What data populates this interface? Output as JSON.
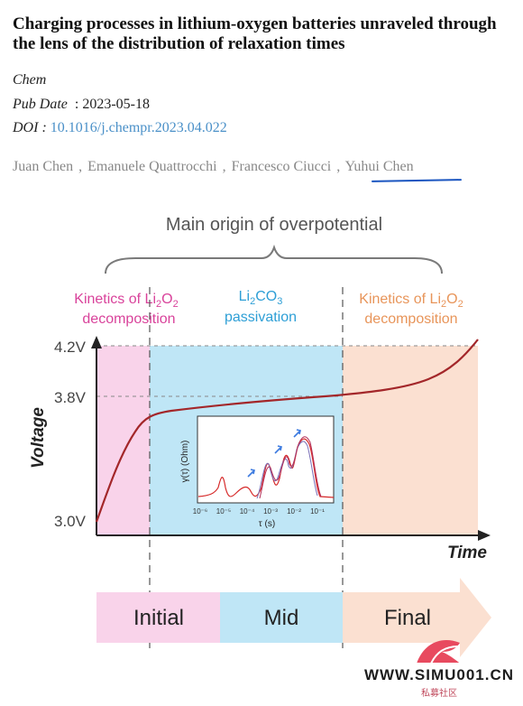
{
  "article": {
    "title": "Charging processes in lithium-oxygen batteries unraveled through the lens of the distribution of relaxation times",
    "journal": "Chem",
    "pub_date_label": "Pub Date",
    "pub_date_sep": ":",
    "pub_date": "2023-05-18",
    "doi_label": "DOI :",
    "doi": "10.1016/j.chempr.2023.04.022",
    "authors": [
      "Juan Chen",
      "Emanuele Quattrocchi",
      "Francesco Ciucci",
      "Yuhui Chen"
    ],
    "author_sep": ","
  },
  "figure": {
    "overall_label": "Main origin of overpotential",
    "regions": [
      {
        "line1": "Kinetics of Li",
        "sub": "2",
        "mid": "O",
        "sub2": "2",
        "line2": "decomposition",
        "color": "#d9439b"
      },
      {
        "line1": "Li",
        "sub": "2",
        "mid": "CO",
        "sub2": "3",
        "line2": "passivation",
        "color": "#2e9fd6"
      },
      {
        "line1": "Kinetics of Li",
        "sub": "2",
        "mid": "O",
        "sub2": "2",
        "line2": "decomposition",
        "color": "#e8955a"
      }
    ],
    "y_axis_label": "Voltage",
    "x_axis_label": "Time",
    "y_ticks": [
      "4.2V",
      "3.8V",
      "3.0V"
    ],
    "inset": {
      "y_label": "γ(τ) (Ohm)",
      "x_label": "τ (s)",
      "x_ticks": [
        "10⁻⁶",
        "10⁻⁵",
        "10⁻⁴",
        "10⁻³",
        "10⁻²",
        "10⁻¹"
      ]
    },
    "stages": [
      "Initial",
      "Mid",
      "Final"
    ],
    "colors": {
      "pink": "#f9d3ea",
      "blue": "#bfe6f6",
      "orange": "#fbe0d1",
      "curve": "#a3272a",
      "brace": "#7a7a7a"
    }
  },
  "watermark": {
    "site": "WWW.SIMU001.CN",
    "sub": "私募社区"
  }
}
